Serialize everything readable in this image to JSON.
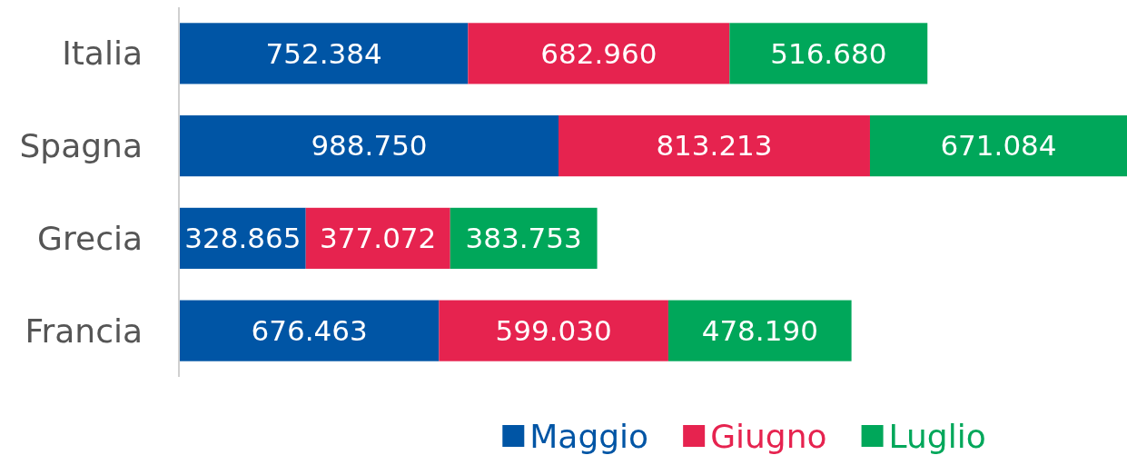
{
  "chart_data": {
    "type": "bar",
    "orientation": "horizontal",
    "stacked": true,
    "legend": "bottom",
    "categories": [
      "Italia",
      "Spagna",
      "Grecia",
      "Francia"
    ],
    "series": [
      {
        "name": "Maggio",
        "color": "#0055a5",
        "values": [
          752384,
          988750,
          328865,
          676463
        ],
        "value_labels": [
          "752.384",
          "988.750",
          "328.865",
          "676.463"
        ]
      },
      {
        "name": "Giugno",
        "color": "#e6234f",
        "values": [
          682960,
          813213,
          377072,
          599030
        ],
        "value_labels": [
          "682.960",
          "813.213",
          "377.072",
          "599.030"
        ]
      },
      {
        "name": "Luglio",
        "color": "#00a75a",
        "values": [
          516680,
          671084,
          383753,
          478190
        ],
        "value_labels": [
          "516.680",
          "671.084",
          "383.753",
          "478.190"
        ]
      }
    ]
  }
}
